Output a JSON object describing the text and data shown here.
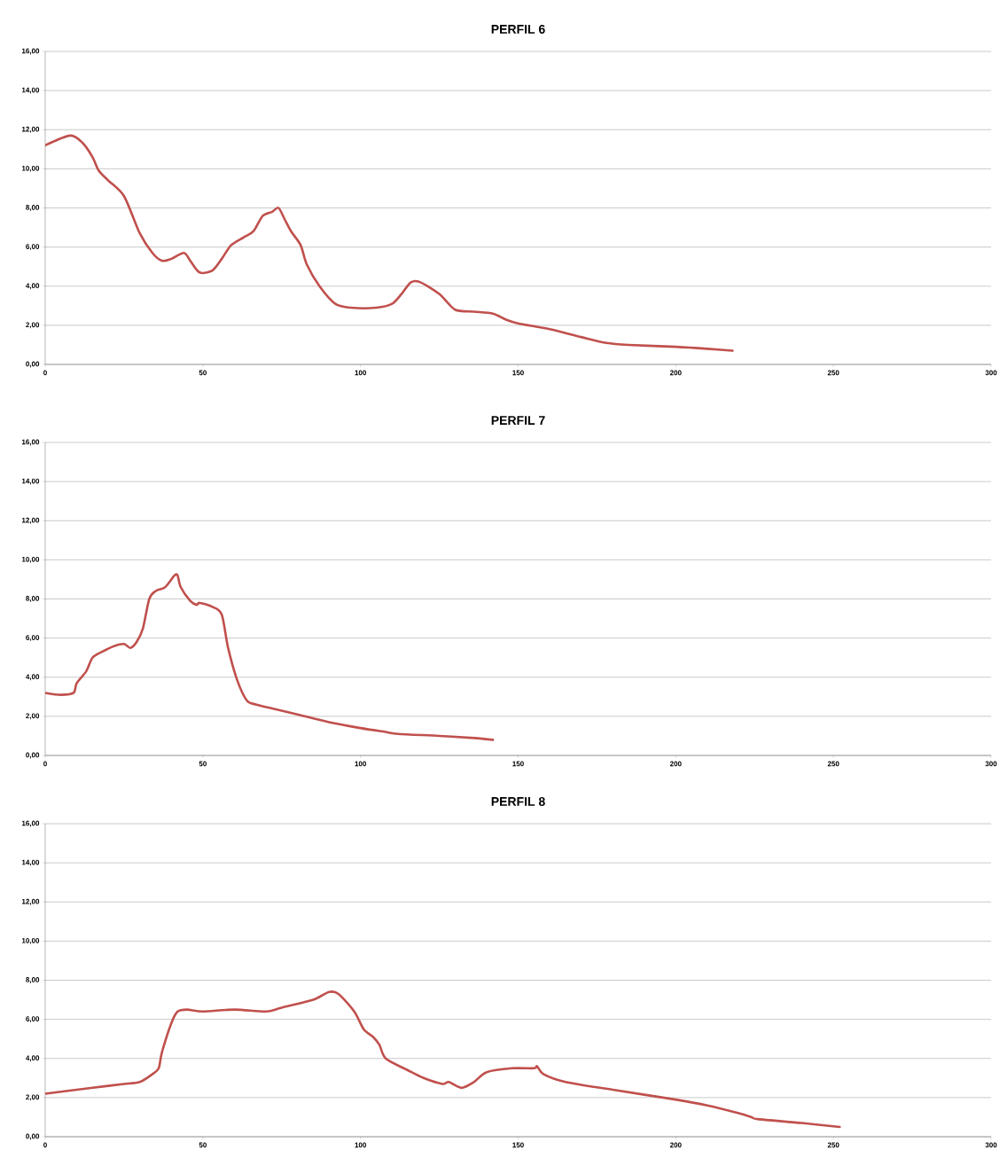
{
  "chart_data": [
    {
      "type": "line",
      "title": "PERFIL 6",
      "grid": "y",
      "line_style": "solid",
      "marker": "none",
      "xlim": [
        0,
        300
      ],
      "ylim": [
        0,
        16
      ],
      "xticks": [
        0,
        50,
        100,
        150,
        200,
        250,
        300
      ],
      "yticks": [
        {
          "value": 0,
          "label": "0,00"
        },
        {
          "value": 2,
          "label": "2,00"
        },
        {
          "value": 4,
          "label": "4,00"
        },
        {
          "value": 6,
          "label": "6,00"
        },
        {
          "value": 8,
          "label": "8,00"
        },
        {
          "value": 10,
          "label": "10,00"
        },
        {
          "value": 12,
          "label": "12,00"
        },
        {
          "value": 14,
          "label": "14,00"
        },
        {
          "value": 16,
          "label": "16,00"
        }
      ],
      "series": [
        {
          "color": "#c0504d",
          "x": [
            0,
            8,
            12,
            15,
            17,
            20,
            25,
            30,
            34,
            37,
            40,
            44,
            46,
            49,
            53,
            56,
            59,
            63,
            66,
            69,
            72,
            74,
            76,
            78,
            81,
            83,
            87,
            92,
            97,
            105,
            110,
            113,
            116,
            119,
            125,
            130,
            136,
            142,
            146,
            150,
            160,
            170,
            178,
            185,
            200,
            210,
            218
          ],
          "values": [
            11.2,
            11.7,
            11.3,
            10.6,
            9.9,
            9.4,
            8.6,
            6.7,
            5.7,
            5.3,
            5.4,
            5.7,
            5.3,
            4.7,
            4.8,
            5.4,
            6.1,
            6.5,
            6.8,
            7.6,
            7.8,
            8.0,
            7.4,
            6.8,
            6.1,
            5.1,
            4.0,
            3.1,
            2.9,
            2.9,
            3.1,
            3.6,
            4.2,
            4.2,
            3.6,
            2.8,
            2.7,
            2.6,
            2.3,
            2.1,
            1.8,
            1.4,
            1.1,
            1.0,
            0.9,
            0.8,
            0.7
          ]
        }
      ]
    },
    {
      "type": "line",
      "title": "PERFIL 7",
      "grid": "y",
      "line_style": "solid",
      "marker": "none",
      "xlim": [
        0,
        300
      ],
      "ylim": [
        0,
        16
      ],
      "xticks": [
        0,
        50,
        100,
        150,
        200,
        250,
        300
      ],
      "yticks": [
        {
          "value": 0,
          "label": "0,00"
        },
        {
          "value": 2,
          "label": "2,00"
        },
        {
          "value": 4,
          "label": "4,00"
        },
        {
          "value": 6,
          "label": "6,00"
        },
        {
          "value": 8,
          "label": "8,00"
        },
        {
          "value": 10,
          "label": "10,00"
        },
        {
          "value": 12,
          "label": "12,00"
        },
        {
          "value": 14,
          "label": "14,00"
        },
        {
          "value": 16,
          "label": "16,00"
        }
      ],
      "series": [
        {
          "color": "#c0504d",
          "x": [
            0,
            5,
            9,
            10,
            13,
            15,
            18,
            22,
            25,
            27,
            29,
            31,
            33,
            35,
            38,
            41,
            42,
            43,
            46,
            48,
            49,
            53,
            56,
            58,
            61,
            64,
            67,
            72,
            80,
            90,
            100,
            108,
            112,
            125,
            135,
            142
          ],
          "values": [
            3.2,
            3.1,
            3.2,
            3.7,
            4.3,
            5.0,
            5.3,
            5.6,
            5.7,
            5.5,
            5.8,
            6.5,
            8.0,
            8.4,
            8.6,
            9.2,
            9.2,
            8.6,
            7.9,
            7.7,
            7.8,
            7.6,
            7.2,
            5.5,
            3.8,
            2.8,
            2.6,
            2.4,
            2.1,
            1.7,
            1.4,
            1.2,
            1.1,
            1.0,
            0.9,
            0.8
          ]
        }
      ]
    },
    {
      "type": "line",
      "title": "PERFIL 8",
      "grid": "y",
      "line_style": "solid",
      "marker": "none",
      "xlim": [
        0,
        300
      ],
      "ylim": [
        0,
        16
      ],
      "xticks": [
        0,
        50,
        100,
        150,
        200,
        250,
        300
      ],
      "yticks": [
        {
          "value": 0,
          "label": "0,00"
        },
        {
          "value": 2,
          "label": "2,00"
        },
        {
          "value": 4,
          "label": "4,00"
        },
        {
          "value": 6,
          "label": "6,00"
        },
        {
          "value": 8,
          "label": "8,00"
        },
        {
          "value": 10,
          "label": "10,00"
        },
        {
          "value": 12,
          "label": "12,00"
        },
        {
          "value": 14,
          "label": "14,00"
        },
        {
          "value": 16,
          "label": "16,00"
        }
      ],
      "series": [
        {
          "color": "#c0504d",
          "x": [
            0,
            10,
            20,
            25,
            30,
            34,
            36,
            37,
            40,
            42,
            45,
            50,
            60,
            70,
            75,
            85,
            90,
            93,
            98,
            101,
            104,
            106,
            108,
            115,
            120,
            126,
            128,
            132,
            136,
            140,
            148,
            155,
            156,
            158,
            165,
            180,
            200,
            210,
            220,
            224,
            226,
            240,
            252
          ],
          "values": [
            2.2,
            2.4,
            2.6,
            2.7,
            2.8,
            3.2,
            3.5,
            4.3,
            5.8,
            6.4,
            6.5,
            6.4,
            6.5,
            6.4,
            6.6,
            7.0,
            7.4,
            7.3,
            6.4,
            5.5,
            5.1,
            4.7,
            4.0,
            3.4,
            3.0,
            2.7,
            2.8,
            2.5,
            2.8,
            3.3,
            3.5,
            3.5,
            3.6,
            3.2,
            2.8,
            2.4,
            1.9,
            1.6,
            1.2,
            1.0,
            0.9,
            0.7,
            0.5
          ]
        }
      ]
    }
  ]
}
